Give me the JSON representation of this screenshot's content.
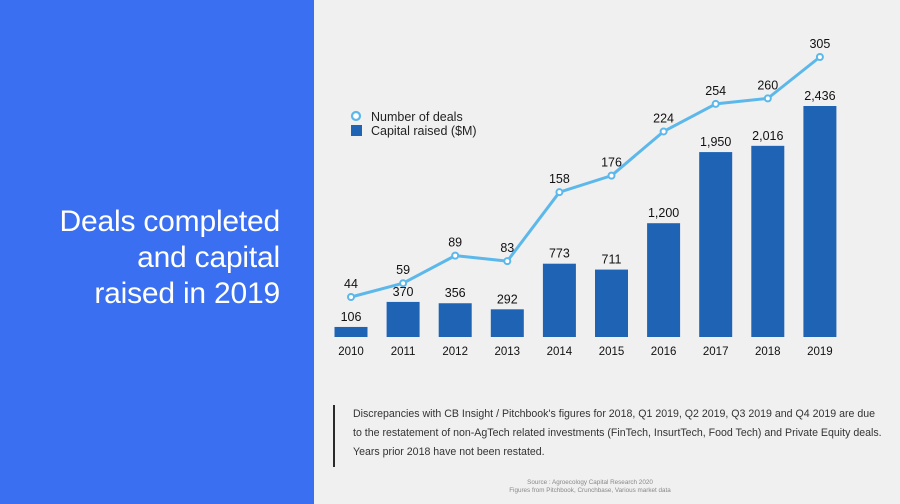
{
  "title_lines": [
    "Deals completed",
    "and capital",
    "raised in 2019"
  ],
  "chart_data": {
    "type": "bar",
    "categories": [
      "2010",
      "2011",
      "2012",
      "2013",
      "2014",
      "2015",
      "2016",
      "2017",
      "2018",
      "2019"
    ],
    "series": [
      {
        "name": "Capital raised ($M)",
        "type": "bar",
        "color": "#1f63b5",
        "values": [
          106,
          370,
          356,
          292,
          773,
          711,
          1200,
          1950,
          2016,
          2436
        ],
        "labels": [
          "106",
          "370",
          "356",
          "292",
          "773",
          "711",
          "1,200",
          "1,950",
          "2,016",
          "2,436"
        ]
      },
      {
        "name": "Number of deals",
        "type": "line",
        "color": "#5cb8ea",
        "values": [
          44,
          59,
          89,
          83,
          158,
          176,
          224,
          254,
          260,
          305
        ],
        "labels": [
          "44",
          "59",
          "89",
          "83",
          "158",
          "176",
          "224",
          "254",
          "260",
          "305"
        ]
      }
    ],
    "legend": {
      "position": "top-left",
      "items": [
        "Number of deals",
        "Capital raised ($M)"
      ]
    },
    "grid": false
  },
  "note_lines": [
    "Discrepancies with CB Insight / Pitchbook's figures for 2018, Q1 2019, Q2 2019, Q3 2019 and Q4 2019 are due",
    "to the restatement of non-AgTech related investments (FinTech, InsurtTech, Food Tech) and Private Equity deals.",
    "Years prior 2018 have not been restated."
  ],
  "source_lines": [
    "Source : Agroecology Capital Research 2020",
    "Figures from Pitchbook, Crunchbase, Various market data"
  ]
}
